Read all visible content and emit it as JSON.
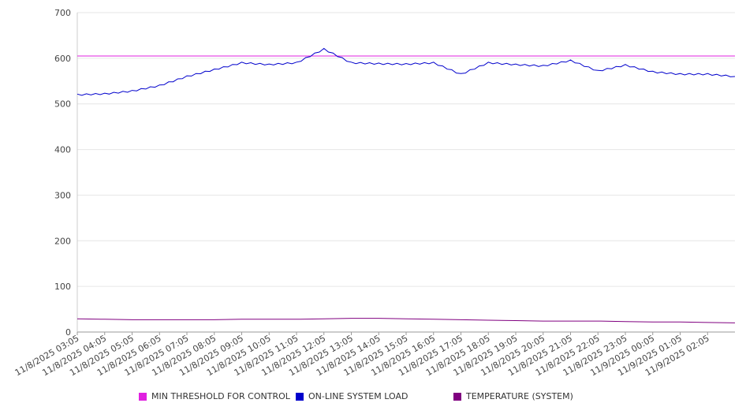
{
  "chart_data": {
    "type": "line",
    "title": "",
    "xlabel": "",
    "ylabel": "",
    "ylim": [
      0,
      700
    ],
    "y_ticks": [
      0,
      100,
      200,
      300,
      400,
      500,
      600,
      700
    ],
    "x_tick_labels": [
      "11/8/2025 03:05",
      "11/8/2025 04:05",
      "11/8/2025 05:05",
      "11/8/2025 06:05",
      "11/8/2025 07:05",
      "11/8/2025 08:05",
      "11/8/2025 09:05",
      "11/8/2025 10:05",
      "11/8/2025 11:05",
      "11/8/2025 12:05",
      "11/8/2025 13:05",
      "11/8/2025 14:05",
      "11/8/2025 15:05",
      "11/8/2025 16:05",
      "11/8/2025 17:05",
      "11/8/2025 18:05",
      "11/8/2025 19:05",
      "11/8/2025 20:05",
      "11/8/2025 21:05",
      "11/8/2025 22:05",
      "11/8/2025 23:05",
      "11/9/2025 00:05",
      "11/9/2025 01:05",
      "11/9/2025 02:05"
    ],
    "grid": true,
    "legend_position": "bottom",
    "series": [
      {
        "name": "MIN THRESHOLD FOR CONTROL",
        "color": "#e020e0",
        "values": [
          605,
          605,
          605,
          605,
          605,
          605,
          605,
          605,
          605,
          605,
          605,
          605,
          605,
          605,
          605,
          605,
          605,
          605,
          605,
          605,
          605,
          605,
          605,
          605,
          605
        ]
      },
      {
        "name": "ON-LINE SYSTEM LOAD",
        "color": "#0000cc",
        "values": [
          520,
          522,
          528,
          540,
          560,
          575,
          590,
          586,
          590,
          620,
          590,
          588,
          587,
          590,
          565,
          590,
          586,
          583,
          595,
          572,
          585,
          570,
          565,
          565,
          560
        ]
      },
      {
        "name": "TEMPERATURE (SYSTEM)",
        "color": "#800080",
        "values": [
          29,
          28,
          27,
          27,
          27,
          27,
          28,
          28,
          28,
          29,
          30,
          30,
          29,
          28,
          27,
          26,
          25,
          24,
          24,
          24,
          23,
          22,
          22,
          21,
          20
        ]
      }
    ]
  }
}
